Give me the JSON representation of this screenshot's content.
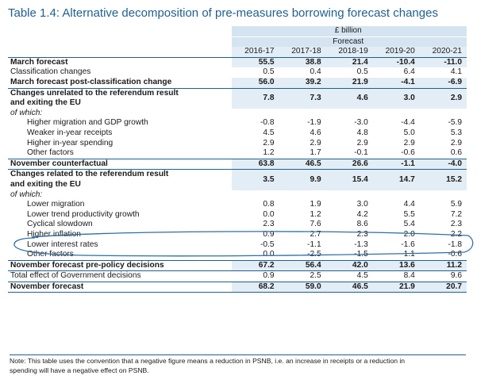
{
  "title": "Table 1.4: Alternative decomposition of pre-measures borrowing forecast changes",
  "unit": "£ billion",
  "subheader": "Forecast",
  "years": [
    "2016-17",
    "2017-18",
    "2018-19",
    "2019-20",
    "2020-21"
  ],
  "rows": [
    {
      "label": "March forecast",
      "values": [
        "55.5",
        "38.8",
        "21.4",
        "-10.4",
        "-11.0"
      ]
    },
    {
      "label": "Classification changes",
      "values": [
        "0.5",
        "0.4",
        "0.5",
        "6.4",
        "4.1"
      ]
    },
    {
      "label": "March forecast post-classification change",
      "values": [
        "56.0",
        "39.2",
        "21.9",
        "-4.1",
        "-6.9"
      ]
    },
    {
      "label1": "Changes unrelated to the referendum result",
      "label2": "and exiting the EU",
      "values": [
        "7.8",
        "7.3",
        "4.6",
        "3.0",
        "2.9"
      ]
    },
    {
      "label": "of which:"
    },
    {
      "label": "Higher migration and GDP growth",
      "values": [
        "-0.8",
        "-1.9",
        "-3.0",
        "-4.4",
        "-5.9"
      ]
    },
    {
      "label": "Weaker in-year receipts",
      "values": [
        "4.5",
        "4.6",
        "4.8",
        "5.0",
        "5.3"
      ]
    },
    {
      "label": "Higher in-year spending",
      "values": [
        "2.9",
        "2.9",
        "2.9",
        "2.9",
        "2.9"
      ]
    },
    {
      "label": "Other factors",
      "values": [
        "1.2",
        "1.7",
        "-0.1",
        "-0.6",
        "0.6"
      ]
    },
    {
      "label": "November counterfactual",
      "values": [
        "63.8",
        "46.5",
        "26.6",
        "-1.1",
        "-4.0"
      ]
    },
    {
      "label1": "Changes related to the referendum result",
      "label2": "and exiting the EU",
      "values": [
        "3.5",
        "9.9",
        "15.4",
        "14.7",
        "15.2"
      ]
    },
    {
      "label": "of which:"
    },
    {
      "label": "Lower migration",
      "values": [
        "0.8",
        "1.9",
        "3.0",
        "4.4",
        "5.9"
      ]
    },
    {
      "label": "Lower trend productivity growth",
      "values": [
        "0.0",
        "1.2",
        "4.2",
        "5.5",
        "7.2"
      ]
    },
    {
      "label": "Cyclical slowdown",
      "values": [
        "2.3",
        "7.6",
        "8.6",
        "5.4",
        "2.3"
      ]
    },
    {
      "label": "Higher inflation",
      "values": [
        "0.9",
        "2.7",
        "2.3",
        "2.0",
        "2.2"
      ]
    },
    {
      "label": "Lower interest rates",
      "values": [
        "-0.5",
        "-1.1",
        "-1.3",
        "-1.6",
        "-1.8"
      ]
    },
    {
      "label": "Other factors",
      "values": [
        "0.0",
        "-2.5",
        "-1.5",
        "-1.1",
        "-0.6"
      ]
    },
    {
      "label": "November forecast pre-policy decisions",
      "values": [
        "67.2",
        "56.4",
        "42.0",
        "13.6",
        "11.2"
      ]
    },
    {
      "label": "Total effect of Government decisions",
      "values": [
        "0.9",
        "2.5",
        "4.5",
        "8.4",
        "9.6"
      ]
    },
    {
      "label": "November forecast",
      "values": [
        "68.2",
        "59.0",
        "46.5",
        "21.9",
        "20.7"
      ]
    }
  ],
  "note_line1": "Note: This table uses the convention that a negative figure means a reduction in PSNB, i.e. an increase in receipts or a reduction in",
  "note_line2": "spending will have a negative effect on PSNB.",
  "colors": {
    "accent": "#1f5f8f",
    "shade": "#d4e4f0",
    "handdrawn": "#2a6fa8"
  }
}
